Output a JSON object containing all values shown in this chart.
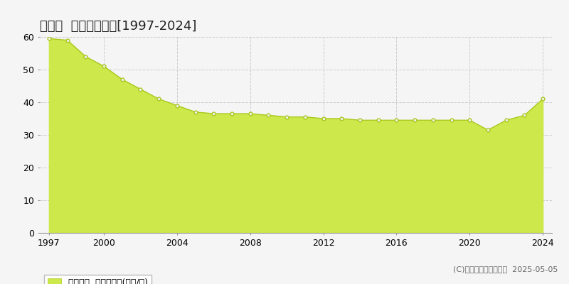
{
  "title": "寒川町  基準地価推移[1997-2024]",
  "years": [
    1997,
    1998,
    1999,
    2000,
    2001,
    2002,
    2003,
    2004,
    2005,
    2006,
    2007,
    2008,
    2009,
    2010,
    2011,
    2012,
    2013,
    2014,
    2015,
    2016,
    2017,
    2018,
    2019,
    2020,
    2021,
    2022,
    2023,
    2024
  ],
  "values": [
    59.5,
    59.0,
    54.0,
    51.0,
    47.0,
    44.0,
    41.0,
    39.0,
    37.0,
    36.5,
    36.5,
    36.5,
    36.0,
    35.5,
    35.5,
    35.0,
    35.0,
    34.5,
    34.5,
    34.5,
    34.5,
    34.5,
    34.5,
    34.5,
    31.5,
    34.5,
    36.0,
    41.0
  ],
  "fill_color": "#cce84a",
  "line_color": "#aac820",
  "marker_facecolor": "#f0f0f0",
  "marker_edgecolor": "#aac820",
  "background_color": "#f5f5f5",
  "plot_bg_color": "#f5f5f5",
  "grid_color": "#cccccc",
  "ylim": [
    0,
    60
  ],
  "yticks": [
    0,
    10,
    20,
    30,
    40,
    50,
    60
  ],
  "xticks": [
    1997,
    2000,
    2004,
    2008,
    2012,
    2016,
    2020,
    2024
  ],
  "legend_label": "基準地価  平均坊単価(万円/坊)",
  "legend_color": "#cce84a",
  "watermark": "(C)土地価格ドットコム  2025-05-05",
  "title_fontsize": 13,
  "tick_fontsize": 9,
  "legend_fontsize": 9,
  "watermark_fontsize": 8
}
